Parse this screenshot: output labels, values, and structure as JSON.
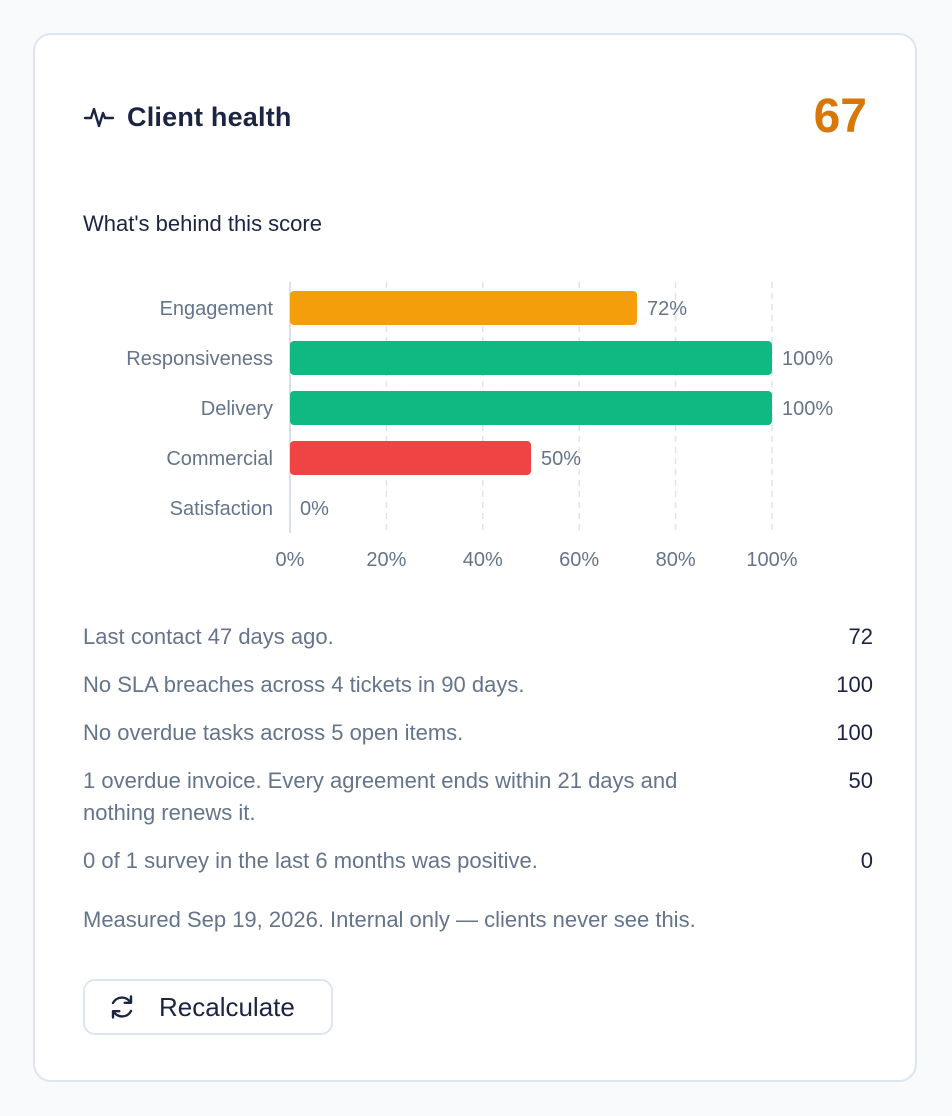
{
  "card": {
    "title": "Client health",
    "score": "67",
    "score_color": "#d97706",
    "icon": "pulse-icon",
    "subtitle": "What's behind this score"
  },
  "chart_data": {
    "type": "bar",
    "orientation": "horizontal",
    "categories": [
      "Engagement",
      "Responsiveness",
      "Delivery",
      "Commercial",
      "Satisfaction"
    ],
    "values": [
      72,
      100,
      100,
      50,
      0
    ],
    "value_labels": [
      "72%",
      "100%",
      "100%",
      "50%",
      "0%"
    ],
    "colors": [
      "#f59e0b",
      "#10b981",
      "#10b981",
      "#ef4444",
      "#94a3b8"
    ],
    "xlim": [
      0,
      100
    ],
    "xticks": [
      "0%",
      "20%",
      "40%",
      "60%",
      "80%",
      "100%"
    ],
    "grid": true,
    "title": "",
    "xlabel": "",
    "ylabel": ""
  },
  "factors": [
    {
      "text": "Last contact 47 days ago.",
      "score": "72"
    },
    {
      "text": "No SLA breaches across 4 tickets in 90 days.",
      "score": "100"
    },
    {
      "text": "No overdue tasks across 5 open items.",
      "score": "100"
    },
    {
      "text": "1 overdue invoice. Every agreement ends within 21 days and nothing renews it.",
      "score": "50"
    },
    {
      "text": "0 of 1 survey in the last 6 months was positive.",
      "score": "0"
    }
  ],
  "footnote": "Measured Sep 19, 2026. Internal only — clients never see this.",
  "actions": {
    "recalculate_label": "Recalculate",
    "recalculate_icon": "refresh-icon"
  }
}
